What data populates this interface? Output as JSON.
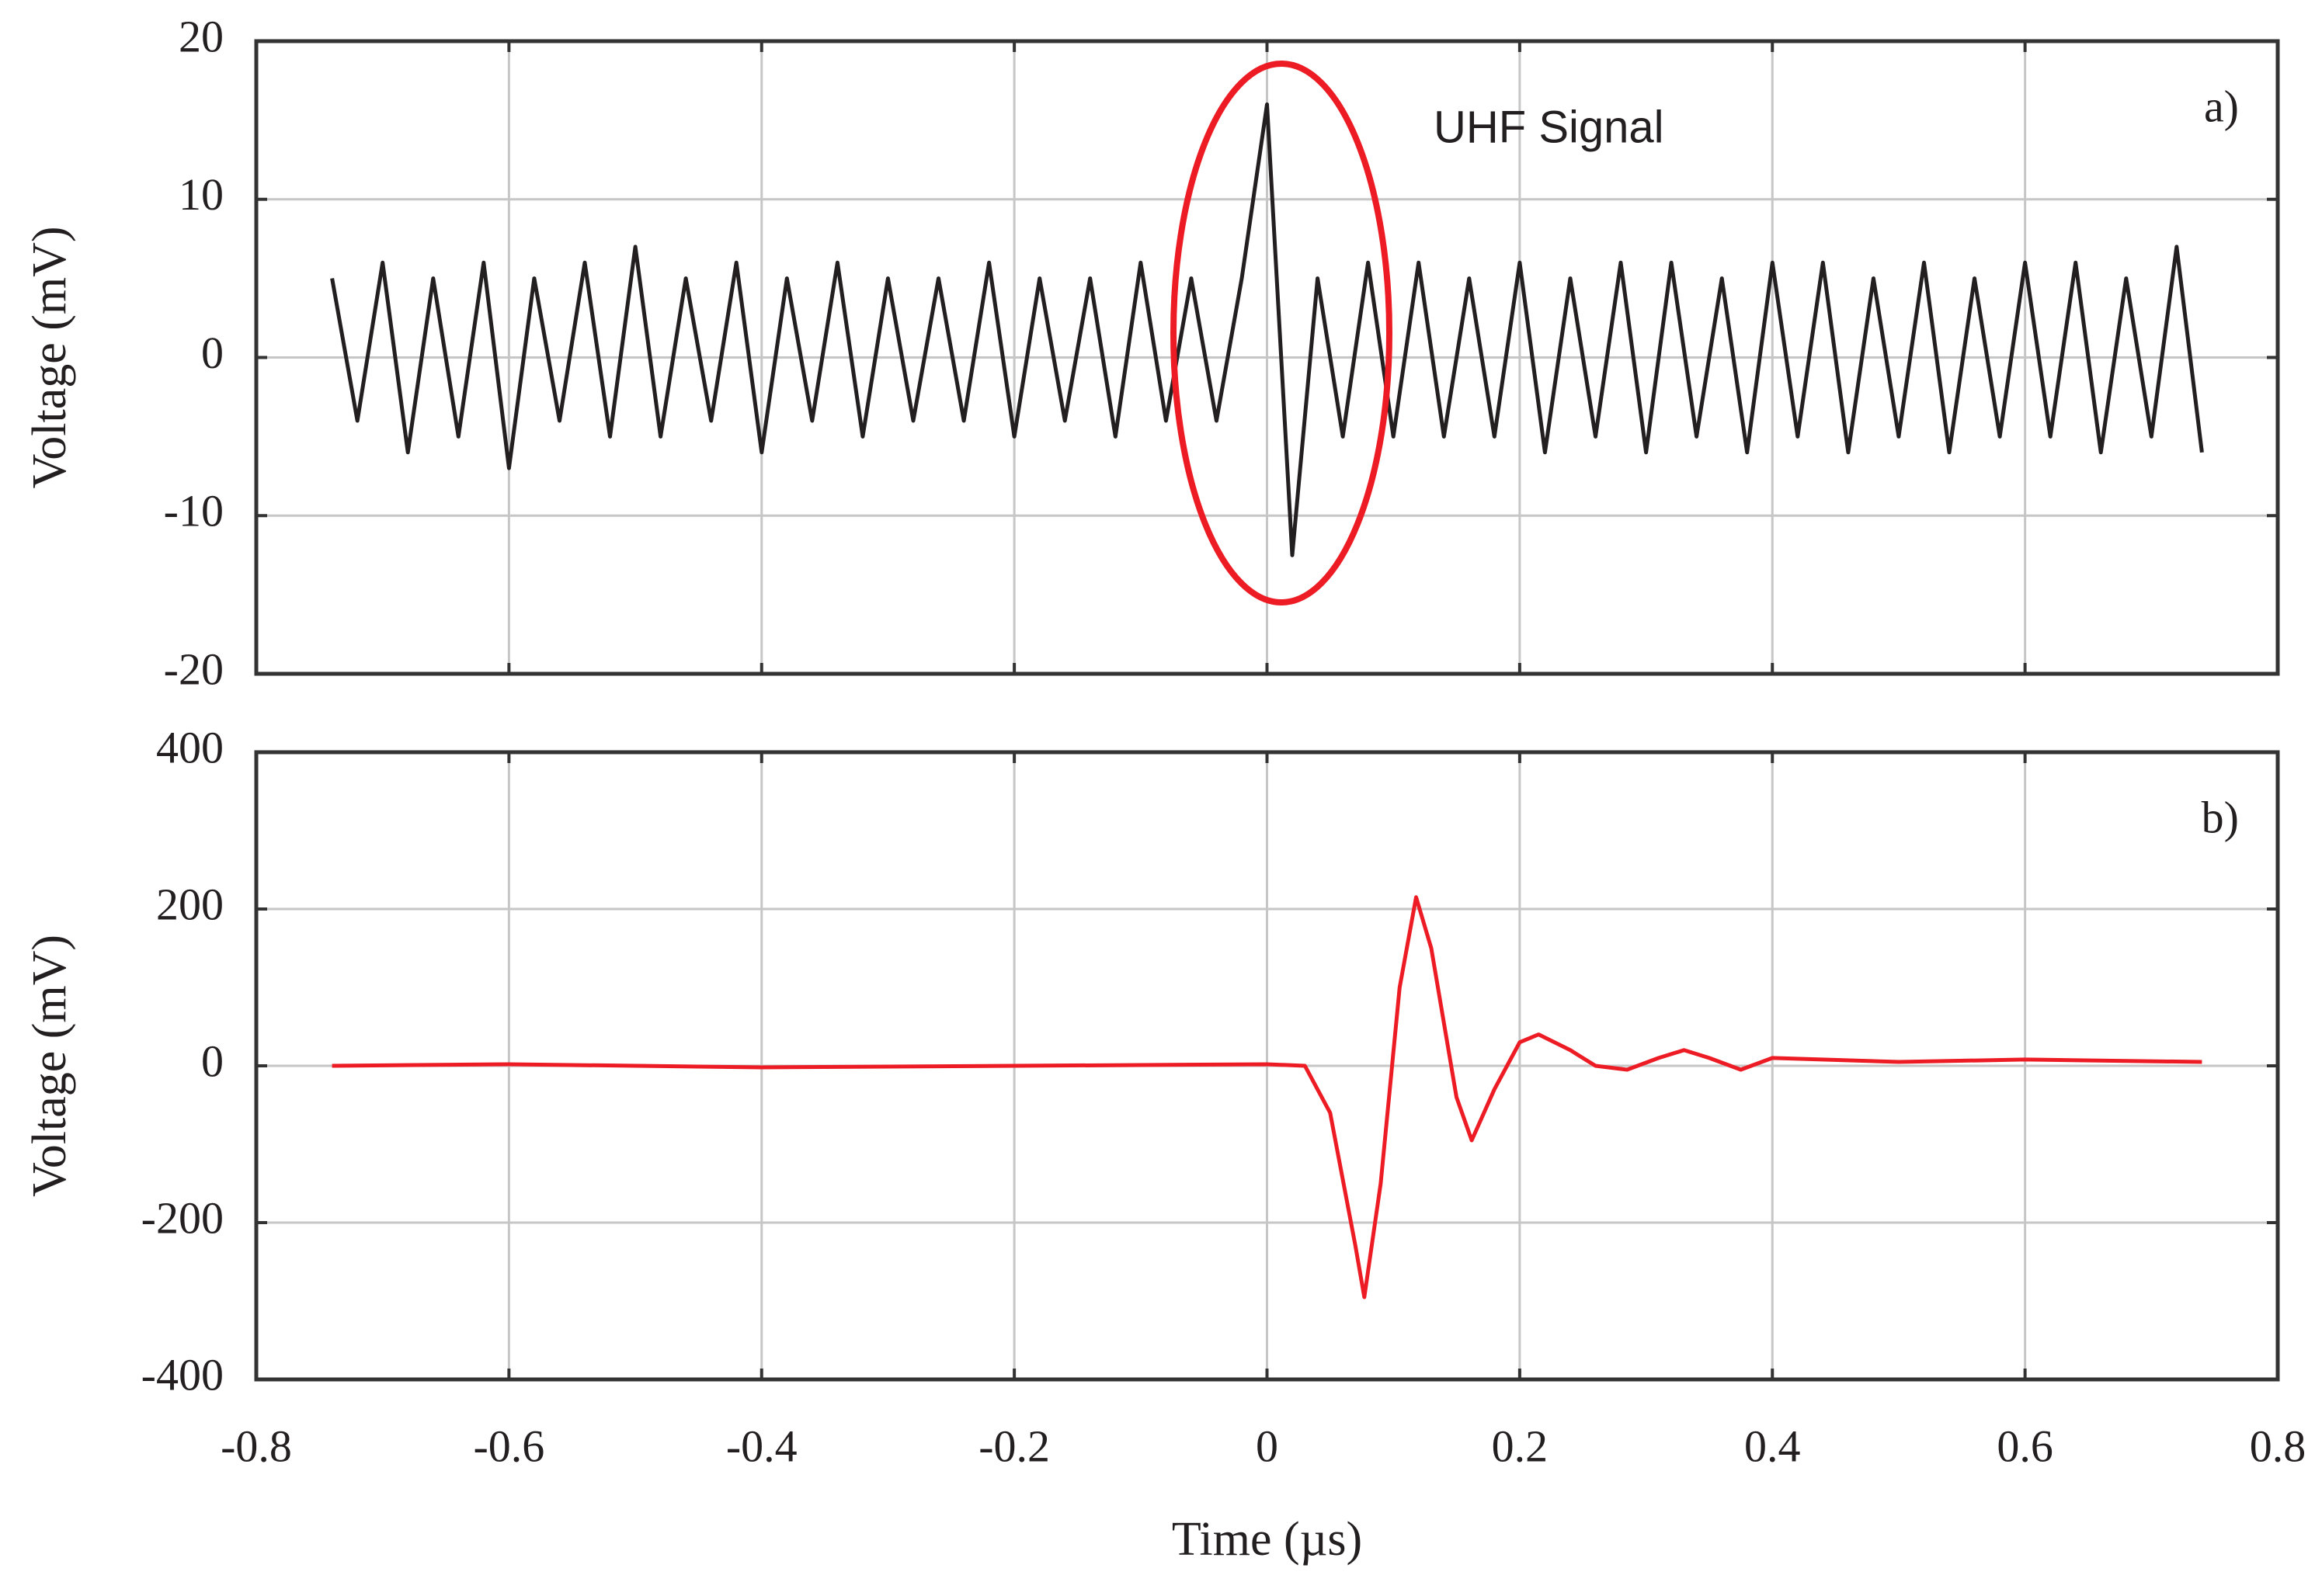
{
  "chart_data": [
    {
      "type": "line",
      "ylabel": "Voltage (mV)",
      "annotation": "UHF Signal",
      "panel_label": "a)",
      "color": "#231f20",
      "x": [
        -0.74,
        -0.72,
        -0.7,
        -0.68,
        -0.66,
        -0.64,
        -0.62,
        -0.6,
        -0.58,
        -0.56,
        -0.54,
        -0.52,
        -0.5,
        -0.48,
        -0.46,
        -0.44,
        -0.42,
        -0.4,
        -0.38,
        -0.36,
        -0.34,
        -0.32,
        -0.3,
        -0.28,
        -0.26,
        -0.24,
        -0.22,
        -0.2,
        -0.18,
        -0.16,
        -0.14,
        -0.12,
        -0.1,
        -0.08,
        -0.06,
        -0.04,
        -0.02,
        0,
        0.02,
        0.04,
        0.06,
        0.08,
        0.1,
        0.12,
        0.14,
        0.16,
        0.18,
        0.2,
        0.22,
        0.24,
        0.26,
        0.28,
        0.3,
        0.32,
        0.34,
        0.36,
        0.38,
        0.4,
        0.42,
        0.44,
        0.46,
        0.48,
        0.5,
        0.52,
        0.54,
        0.56,
        0.58,
        0.6,
        0.62,
        0.64,
        0.66,
        0.68,
        0.7,
        0.72,
        0.74
      ],
      "values": [
        5,
        -4,
        6,
        -6,
        5,
        -5,
        6,
        -7,
        5,
        -4,
        6,
        -5,
        7,
        -5,
        5,
        -4,
        6,
        -6,
        5,
        -4,
        6,
        -5,
        5,
        -4,
        5,
        -4,
        6,
        -5,
        5,
        -4,
        5,
        -5,
        6,
        -4,
        5,
        -4,
        5,
        16,
        -12.5,
        5,
        -5,
        6,
        -5,
        6,
        -5,
        5,
        -5,
        6,
        -6,
        5,
        -5,
        6,
        -6,
        6,
        -5,
        5,
        -6,
        6,
        -5,
        6,
        -6,
        5,
        -5,
        6,
        -6,
        5,
        -5,
        6,
        -5,
        6,
        -6,
        5,
        -5,
        7,
        -6
      ],
      "xlim": [
        -0.8,
        0.8
      ],
      "xticks": [
        -0.8,
        -0.6,
        -0.4,
        -0.2,
        0,
        0.2,
        0.4,
        0.6,
        0.8
      ],
      "xtick_labels": false,
      "ylim": [
        -20,
        20
      ],
      "yticks": [
        -20,
        -10,
        0,
        10,
        20
      ],
      "grid": true
    },
    {
      "type": "line",
      "ylabel": "Voltage (mV)",
      "xlabel": "Time (µs)",
      "panel_label": "b)",
      "color": "#ed1c24",
      "x": [
        -0.74,
        -0.6,
        -0.4,
        -0.2,
        0,
        0.03,
        0.05,
        0.07,
        0.077,
        0.09,
        0.105,
        0.118,
        0.13,
        0.15,
        0.162,
        0.18,
        0.2,
        0.215,
        0.24,
        0.26,
        0.285,
        0.31,
        0.33,
        0.35,
        0.375,
        0.4,
        0.5,
        0.6,
        0.74
      ],
      "values": [
        0,
        2,
        -2,
        0,
        2,
        0,
        -60,
        -230,
        -295,
        -150,
        100,
        215,
        150,
        -40,
        -95,
        -30,
        30,
        40,
        20,
        0,
        -5,
        10,
        20,
        10,
        -5,
        10,
        5,
        8,
        5
      ],
      "xlim": [
        -0.8,
        0.8
      ],
      "xticks": [
        -0.8,
        -0.6,
        -0.4,
        -0.2,
        0,
        0.2,
        0.4,
        0.6,
        0.8
      ],
      "xtick_labels": true,
      "ylim": [
        -400,
        400
      ],
      "yticks": [
        -400,
        -200,
        0,
        200,
        400
      ],
      "grid": true
    }
  ]
}
